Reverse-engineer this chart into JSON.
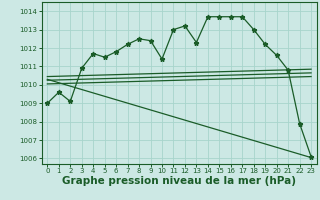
{
  "background_color": "#cce8e4",
  "grid_color": "#a8d4cc",
  "line_color": "#1a5c28",
  "xlabel": "Graphe pression niveau de la mer (hPa)",
  "xlabel_fontsize": 7.5,
  "xlim": [
    -0.5,
    23.5
  ],
  "ylim": [
    1005.7,
    1014.5
  ],
  "yticks": [
    1006,
    1007,
    1008,
    1009,
    1010,
    1011,
    1012,
    1013,
    1014
  ],
  "xticks": [
    0,
    1,
    2,
    3,
    4,
    5,
    6,
    7,
    8,
    9,
    10,
    11,
    12,
    13,
    14,
    15,
    16,
    17,
    18,
    19,
    20,
    21,
    22,
    23
  ],
  "main_series": [
    1009.0,
    1009.6,
    1009.1,
    1010.9,
    1011.7,
    1011.5,
    1011.8,
    1012.2,
    1012.5,
    1012.4,
    1011.4,
    1013.0,
    1013.2,
    1012.3,
    1013.7,
    1013.7,
    1013.7,
    1013.7,
    1013.0,
    1012.2,
    1011.6,
    1010.8,
    1007.9,
    1006.1
  ],
  "flat_lines": [
    [
      0,
      23,
      1010.45,
      1010.85
    ],
    [
      0,
      23,
      1010.25,
      1010.65
    ],
    [
      0,
      23,
      1010.05,
      1010.45
    ]
  ],
  "diagonal_line": [
    0,
    23,
    1010.3,
    1006.05
  ]
}
